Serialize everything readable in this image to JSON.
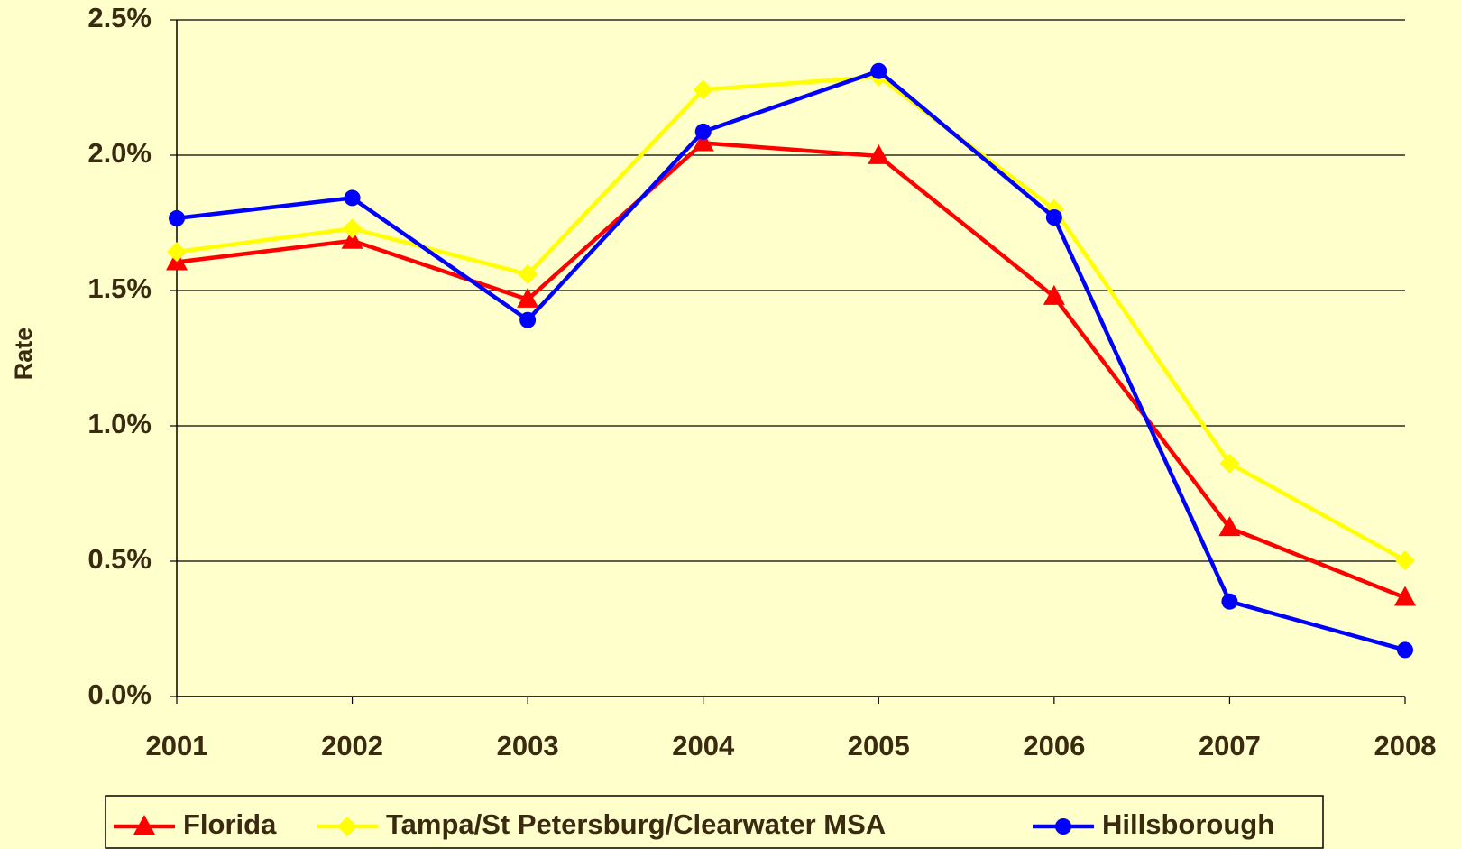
{
  "chart_data": {
    "type": "line",
    "y_label": "Rate",
    "categories": [
      "2001",
      "2002",
      "2003",
      "2004",
      "2005",
      "2006",
      "2007",
      "2008"
    ],
    "series": [
      {
        "name": "Florida",
        "color": "#ff0000",
        "marker": "triangle",
        "values": [
          1.605,
          1.684,
          1.467,
          2.045,
          1.997,
          1.477,
          0.623,
          0.365
        ]
      },
      {
        "name": "Tampa/St Petersburg/Clearwater MSA",
        "color": "#ffff00",
        "marker": "diamond",
        "values": [
          1.643,
          1.729,
          1.56,
          2.242,
          2.29,
          1.801,
          0.861,
          0.503
        ]
      },
      {
        "name": "Hillsborough",
        "color": "#0000ff",
        "marker": "circle",
        "values": [
          1.767,
          1.842,
          1.391,
          2.087,
          2.311,
          1.77,
          0.351,
          0.172
        ]
      }
    ],
    "ylim": [
      0,
      2.5
    ],
    "yticks": [
      {
        "value": 0,
        "label": "0.0%"
      },
      {
        "value": 0.5,
        "label": "0.5%"
      },
      {
        "value": 1.0,
        "label": "1.0%"
      },
      {
        "value": 1.5,
        "label": "1.5%"
      },
      {
        "value": 2.0,
        "label": "2.0%"
      },
      {
        "value": 2.5,
        "label": "2.5%"
      }
    ],
    "grid": true
  }
}
